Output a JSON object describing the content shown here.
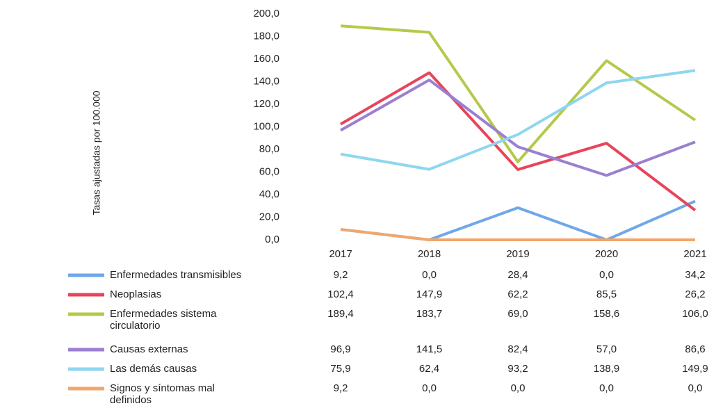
{
  "chart_data": {
    "type": "line",
    "y_axis_label": "Tasas ajustadas por 100.000",
    "categories": [
      "2017",
      "2018",
      "2019",
      "2020",
      "2021"
    ],
    "ylim": [
      0,
      200
    ],
    "yticks": [
      {
        "value": 0,
        "label": "0,0"
      },
      {
        "value": 20,
        "label": "20,0"
      },
      {
        "value": 40,
        "label": "40,0"
      },
      {
        "value": 60,
        "label": "60,0"
      },
      {
        "value": 80,
        "label": "80,0"
      },
      {
        "value": 100,
        "label": "100,0"
      },
      {
        "value": 120,
        "label": "120,0"
      },
      {
        "value": 140,
        "label": "140,0"
      },
      {
        "value": 160,
        "label": "160,0"
      },
      {
        "value": 180,
        "label": "180,0"
      },
      {
        "value": 200,
        "label": "200,0"
      }
    ],
    "series": [
      {
        "name": "Enfermedades transmisibles",
        "color": "#6fa8e8",
        "values": [
          9.2,
          0.0,
          28.4,
          0.0,
          34.2
        ],
        "value_labels": [
          "9,2",
          "0,0",
          "28,4",
          "0,0",
          "34,2"
        ]
      },
      {
        "name": "Neoplasias",
        "color": "#e8445a",
        "values": [
          102.4,
          147.9,
          62.2,
          85.5,
          26.2
        ],
        "value_labels": [
          "102,4",
          "147,9",
          "62,2",
          "85,5",
          "26,2"
        ]
      },
      {
        "name": "Enfermedades sistema circulatorio",
        "color": "#b5c94a",
        "values": [
          189.4,
          183.7,
          69.0,
          158.6,
          106.0
        ],
        "value_labels": [
          "189,4",
          "183,7",
          "69,0",
          "158,6",
          "106,0"
        ]
      },
      {
        "name": "Causas externas",
        "color": "#9b7fd0",
        "values": [
          96.9,
          141.5,
          82.4,
          57.0,
          86.6
        ],
        "value_labels": [
          "96,9",
          "141,5",
          "82,4",
          "57,0",
          "86,6"
        ]
      },
      {
        "name": "Las demás causas",
        "color": "#8fd6ef",
        "values": [
          75.9,
          62.4,
          93.2,
          138.9,
          149.9
        ],
        "value_labels": [
          "75,9",
          "62,4",
          "93,2",
          "138,9",
          "149,9"
        ]
      },
      {
        "name": "Signos y síntomas mal definidos",
        "color": "#f2a66a",
        "values": [
          9.2,
          0.0,
          0.0,
          0.0,
          0.0
        ],
        "value_labels": [
          "9,2",
          "0,0",
          "0,0",
          "0,0",
          "0,0"
        ]
      }
    ]
  }
}
